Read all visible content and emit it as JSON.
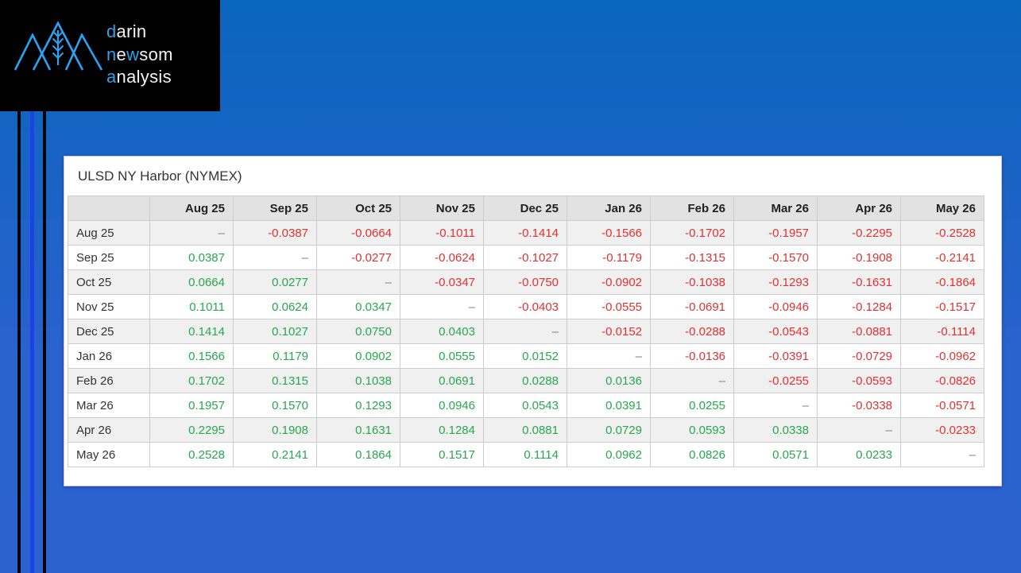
{
  "logo": {
    "accent_color": "#2fa1ea",
    "lines": [
      {
        "segments": [
          {
            "text": "d",
            "accent": true
          },
          {
            "text": "arin",
            "accent": false
          }
        ]
      },
      {
        "segments": [
          {
            "text": "n",
            "accent": true
          },
          {
            "text": "e",
            "accent": false
          },
          {
            "text": "w",
            "accent": true
          },
          {
            "text": "som",
            "accent": false
          }
        ]
      },
      {
        "segments": [
          {
            "text": "a",
            "accent": true
          },
          {
            "text": "nalysis",
            "accent": false
          }
        ]
      }
    ]
  },
  "panel": {
    "title": "ULSD NY Harbor (NYMEX)"
  },
  "matrix": {
    "dash": "–",
    "columns": [
      "Aug 25",
      "Sep 25",
      "Oct 25",
      "Nov 25",
      "Dec 25",
      "Jan 26",
      "Feb 26",
      "Mar 26",
      "Apr 26",
      "May 26"
    ],
    "rows": [
      {
        "label": "Aug 25",
        "values": [
          "–",
          "-0.0387",
          "-0.0664",
          "-0.1011",
          "-0.1414",
          "-0.1566",
          "-0.1702",
          "-0.1957",
          "-0.2295",
          "-0.2528"
        ]
      },
      {
        "label": "Sep 25",
        "values": [
          "0.0387",
          "–",
          "-0.0277",
          "-0.0624",
          "-0.1027",
          "-0.1179",
          "-0.1315",
          "-0.1570",
          "-0.1908",
          "-0.2141"
        ]
      },
      {
        "label": "Oct 25",
        "values": [
          "0.0664",
          "0.0277",
          "–",
          "-0.0347",
          "-0.0750",
          "-0.0902",
          "-0.1038",
          "-0.1293",
          "-0.1631",
          "-0.1864"
        ]
      },
      {
        "label": "Nov 25",
        "values": [
          "0.1011",
          "0.0624",
          "0.0347",
          "–",
          "-0.0403",
          "-0.0555",
          "-0.0691",
          "-0.0946",
          "-0.1284",
          "-0.1517"
        ]
      },
      {
        "label": "Dec 25",
        "values": [
          "0.1414",
          "0.1027",
          "0.0750",
          "0.0403",
          "–",
          "-0.0152",
          "-0.0288",
          "-0.0543",
          "-0.0881",
          "-0.1114"
        ]
      },
      {
        "label": "Jan 26",
        "values": [
          "0.1566",
          "0.1179",
          "0.0902",
          "0.0555",
          "0.0152",
          "–",
          "-0.0136",
          "-0.0391",
          "-0.0729",
          "-0.0962"
        ]
      },
      {
        "label": "Feb 26",
        "values": [
          "0.1702",
          "0.1315",
          "0.1038",
          "0.0691",
          "0.0288",
          "0.0136",
          "–",
          "-0.0255",
          "-0.0593",
          "-0.0826"
        ]
      },
      {
        "label": "Mar 26",
        "values": [
          "0.1957",
          "0.1570",
          "0.1293",
          "0.0946",
          "0.0543",
          "0.0391",
          "0.0255",
          "–",
          "-0.0338",
          "-0.0571"
        ]
      },
      {
        "label": "Apr 26",
        "values": [
          "0.2295",
          "0.1908",
          "0.1631",
          "0.1284",
          "0.0881",
          "0.0729",
          "0.0593",
          "0.0338",
          "–",
          "-0.0233"
        ]
      },
      {
        "label": "May 26",
        "values": [
          "0.2528",
          "0.2141",
          "0.1864",
          "0.1517",
          "0.1114",
          "0.0962",
          "0.0826",
          "0.0571",
          "0.0233",
          "–"
        ]
      }
    ]
  },
  "colors": {
    "background_top": "#0a66be",
    "background_bottom": "#2b62cf",
    "logo_accent": "#2fa1ea",
    "stripe_highlight": "#1a43e6",
    "positive": "#27a74e",
    "negative": "#e03131",
    "dash": "#808080",
    "header_bg": "#e2e2e2",
    "row_alt_bg": "#f0f0f0"
  }
}
